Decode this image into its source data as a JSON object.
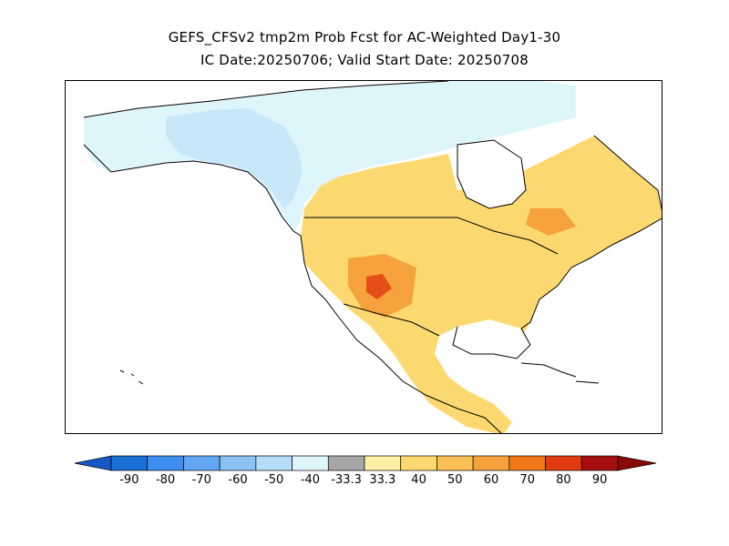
{
  "title": {
    "line1": "GEFS_CFSv2 tmp2m Prob Fcst for AC-Weighted Day1-30",
    "line2": "IC Date:20250706; Valid Start Date: 20250708"
  },
  "colorbar": {
    "labels": [
      "-90",
      "-80",
      "-70",
      "-60",
      "-50",
      "-40",
      "-33.3",
      "33.3",
      "40",
      "50",
      "60",
      "70",
      "80",
      "90"
    ],
    "colors": [
      "#1a6fd6",
      "#3d8ef0",
      "#63a6f2",
      "#8cc1f4",
      "#b4ddf7",
      "#dff5fc",
      "#a6a6a6",
      "#fdf0a6",
      "#fcd970",
      "#f8c055",
      "#f5a23c",
      "#f07818",
      "#e23a10",
      "#a50f0f"
    ]
  },
  "legend_colors": {
    "cold_light": "#dff5fc",
    "cold_mid": "#b4ddf7",
    "warm_light": "#fdf0a6",
    "warm_mid": "#fcd970",
    "warm_strong": "#f5a23c",
    "warm_hot": "#e23a10",
    "coast": "#000000"
  }
}
